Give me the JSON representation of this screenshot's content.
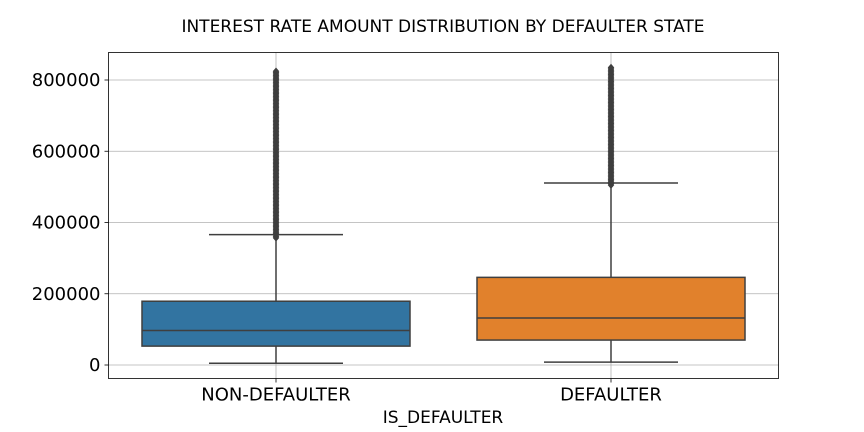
{
  "chart_data": {
    "type": "box",
    "title": "INTEREST RATE AMOUNT DISTRIBUTION BY DEFAULTER STATE",
    "xlabel": "IS_DEFAULTER",
    "ylabel": "",
    "ylim": [
      -35000,
      800000
    ],
    "yticks": [
      0,
      200000,
      400000,
      600000,
      800000
    ],
    "ytick_labels": [
      "0",
      "200000",
      "400000",
      "600000",
      "800000"
    ],
    "grid": true,
    "categories": [
      "NON-DEFAULTER",
      "DEFAULTER"
    ],
    "series": [
      {
        "category": "NON-DEFAULTER",
        "color": "#3274a1",
        "whisker_low": 5000,
        "q1": 53000,
        "median": 97000,
        "q3": 179000,
        "whisker_high": 366000,
        "outliers_from": 357000,
        "outliers_to": 826000
      },
      {
        "category": "DEFAULTER",
        "color": "#e1812c",
        "whisker_low": 8000,
        "q1": 70000,
        "median": 132000,
        "q3": 246000,
        "whisker_high": 511000,
        "outliers_from": 505000,
        "outliers_to": 838000
      }
    ]
  }
}
